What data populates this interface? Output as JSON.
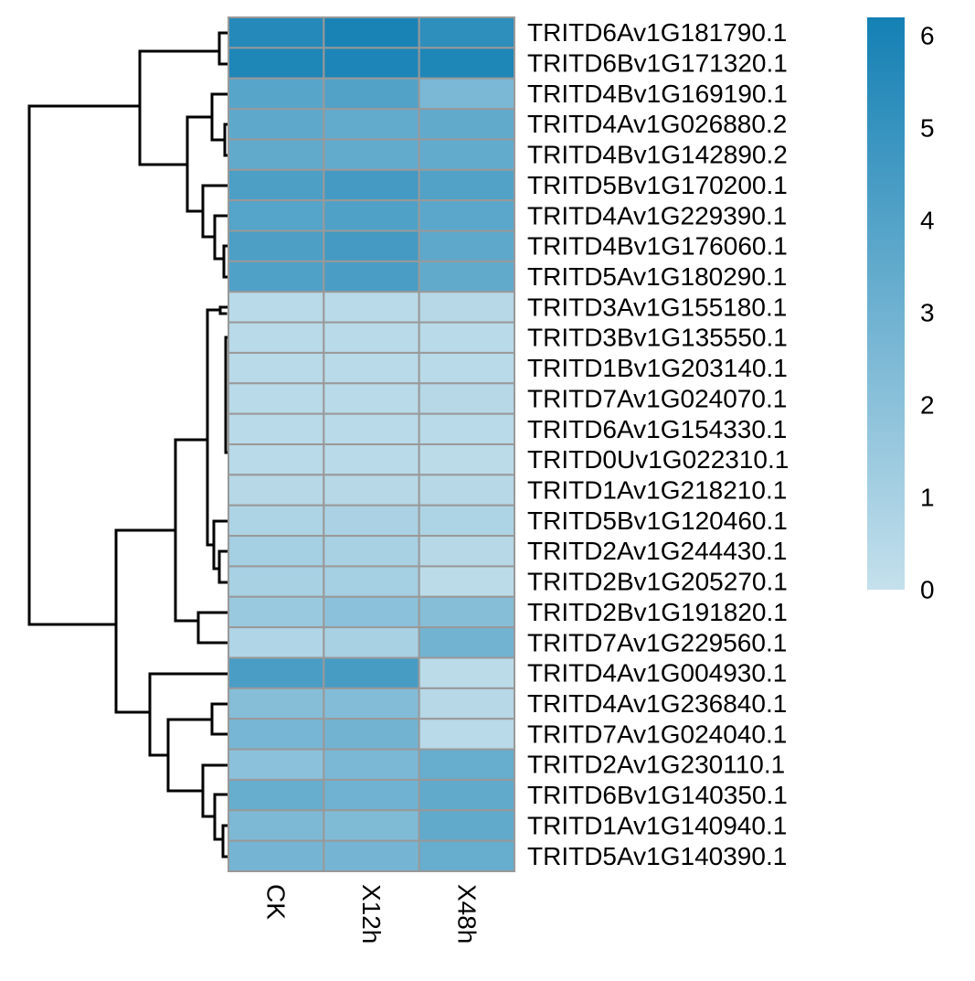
{
  "chart_data": {
    "type": "heatmap",
    "columns": [
      "CK",
      "X12h",
      "X48h"
    ],
    "rows": [
      "TRITD6Av1G181790.1",
      "TRITD6Bv1G171320.1",
      "TRITD4Bv1G169190.1",
      "TRITD4Av1G026880.2",
      "TRITD4Bv1G142890.2",
      "TRITD5Bv1G170200.1",
      "TRITD4Av1G229390.1",
      "TRITD4Bv1G176060.1",
      "TRITD5Av1G180290.1",
      "TRITD3Av1G155180.1",
      "TRITD3Bv1G135550.1",
      "TRITD1Bv1G203140.1",
      "TRITD7Av1G024070.1",
      "TRITD6Av1G154330.1",
      "TRITD0Uv1G022310.1",
      "TRITD1Av1G218210.1",
      "TRITD5Bv1G120460.1",
      "TRITD2Av1G244430.1",
      "TRITD2Bv1G205270.1",
      "TRITD2Bv1G191820.1",
      "TRITD7Av1G229560.1",
      "TRITD4Av1G004930.1",
      "TRITD4Av1G236840.1",
      "TRITD7Av1G024040.1",
      "TRITD2Av1G230110.1",
      "TRITD6Bv1G140350.1",
      "TRITD1Av1G140940.1",
      "TRITD5Av1G140390.1"
    ],
    "values": [
      [
        5.6,
        6.0,
        5.3
      ],
      [
        5.8,
        5.9,
        5.8
      ],
      [
        3.8,
        4.0,
        2.6
      ],
      [
        3.6,
        3.4,
        3.5
      ],
      [
        3.5,
        3.4,
        3.4
      ],
      [
        4.2,
        4.5,
        4.0
      ],
      [
        3.9,
        4.1,
        3.7
      ],
      [
        4.2,
        4.5,
        3.6
      ],
      [
        4.1,
        4.3,
        3.5
      ],
      [
        0.4,
        0.4,
        0.5
      ],
      [
        0.4,
        0.4,
        0.4
      ],
      [
        0.4,
        0.4,
        0.4
      ],
      [
        0.4,
        0.4,
        0.5
      ],
      [
        0.4,
        0.4,
        0.4
      ],
      [
        0.4,
        0.4,
        0.3
      ],
      [
        0.5,
        0.5,
        0.5
      ],
      [
        0.8,
        0.9,
        0.8
      ],
      [
        1.1,
        1.0,
        0.5
      ],
      [
        1.0,
        1.1,
        0.3
      ],
      [
        1.5,
        2.0,
        2.2
      ],
      [
        0.7,
        1.0,
        2.9
      ],
      [
        4.3,
        4.4,
        0.3
      ],
      [
        2.2,
        2.3,
        0.5
      ],
      [
        2.7,
        2.9,
        0.4
      ],
      [
        2.0,
        2.6,
        3.3
      ],
      [
        3.3,
        3.0,
        3.5
      ],
      [
        2.5,
        2.4,
        3.5
      ],
      [
        2.8,
        2.8,
        3.3
      ]
    ],
    "color_scale": {
      "min": 0,
      "max": 6.2,
      "low_color": "#c4e0ec",
      "high_color": "#1480b4"
    },
    "legend": {
      "ticks": [
        6,
        5,
        4,
        3,
        2,
        1,
        0
      ],
      "placement": "right"
    },
    "cell_border_color": "#999999",
    "dendrogram": "rows",
    "grid": false
  }
}
